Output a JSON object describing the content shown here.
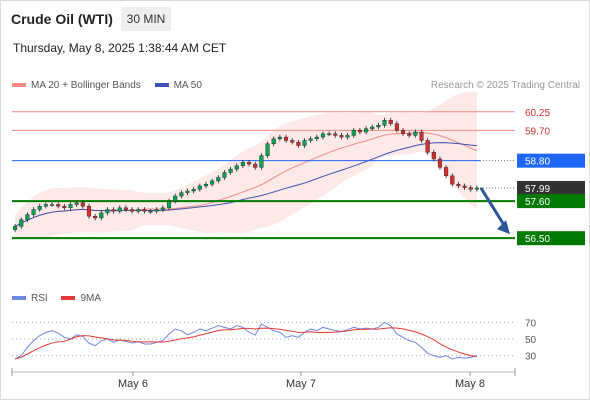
{
  "header": {
    "instrument": "Crude Oil (WTI)",
    "timeframe": "30 MIN",
    "datetime": "Thursday, May 8, 2025 1:38:44 AM CET"
  },
  "legend": {
    "bb_label": "MA 20 + Bollinger Bands",
    "ma50_label": "MA 50",
    "credit": "Research © 2025 Trading Central"
  },
  "rsi_legend": {
    "rsi_label": "RSI",
    "ma9_label": "9MA"
  },
  "colors": {
    "up": "#00a651",
    "down": "#d32f2f",
    "ma50": "#3f51b5",
    "bollinger": "#f28b82",
    "blue_level": "#1e66f5",
    "green_level": "#007a00",
    "arrow": "#2f5597",
    "rsi": "#6f87e6",
    "ma9": "#e53935"
  },
  "chart_data": {
    "type": "candlestick",
    "price_ylim": [
      55.2,
      60.6
    ],
    "levels": [
      {
        "label": "60.25",
        "value": 60.25,
        "kind": "resistance-red"
      },
      {
        "label": "59.70",
        "value": 59.7,
        "kind": "resistance-red"
      },
      {
        "label": "58.80",
        "value": 58.8,
        "kind": "pivot-blue"
      },
      {
        "label": "57.99",
        "value": 57.99,
        "kind": "last-price"
      },
      {
        "label": "57.60",
        "value": 57.6,
        "kind": "support-green"
      },
      {
        "label": "56.50",
        "value": 56.5,
        "kind": "support-green"
      }
    ],
    "x_ticks": [
      "May 6",
      "May 7",
      "May 8"
    ],
    "close": [
      56.85,
      57.05,
      57.2,
      57.35,
      57.45,
      57.5,
      57.5,
      57.45,
      57.4,
      57.5,
      57.55,
      57.45,
      57.15,
      57.1,
      57.25,
      57.35,
      57.3,
      57.4,
      57.35,
      57.3,
      57.35,
      57.3,
      57.3,
      57.35,
      57.4,
      57.6,
      57.75,
      57.85,
      57.9,
      57.95,
      58.05,
      58.1,
      58.2,
      58.3,
      58.45,
      58.55,
      58.65,
      58.75,
      58.7,
      58.6,
      58.95,
      59.3,
      59.45,
      59.5,
      59.4,
      59.35,
      59.25,
      59.4,
      59.45,
      59.5,
      59.6,
      59.6,
      59.55,
      59.5,
      59.55,
      59.7,
      59.65,
      59.75,
      59.8,
      59.85,
      60.0,
      59.9,
      59.7,
      59.6,
      59.55,
      59.65,
      59.4,
      59.05,
      58.85,
      58.6,
      58.35,
      58.1,
      58.05,
      58.0,
      57.95,
      57.99
    ],
    "ma50_ylim": [
      55.2,
      60.6
    ],
    "rsi": {
      "ylim": [
        20,
        80
      ],
      "levels": [
        {
          "label": "70",
          "value": 70
        },
        {
          "label": "50",
          "value": 50
        },
        {
          "label": "30",
          "value": 30
        }
      ],
      "values": [
        26,
        30,
        40,
        48,
        54,
        58,
        60,
        57,
        52,
        50,
        55,
        53,
        45,
        42,
        48,
        50,
        46,
        49,
        47,
        45,
        47,
        44,
        44,
        46,
        48,
        56,
        62,
        60,
        55,
        58,
        62,
        60,
        63,
        66,
        64,
        62,
        66,
        64,
        58,
        55,
        68,
        64,
        60,
        58,
        52,
        54,
        52,
        58,
        62,
        60,
        64,
        62,
        60,
        59,
        61,
        64,
        62,
        63,
        62,
        64,
        70,
        66,
        56,
        52,
        48,
        46,
        40,
        33,
        30,
        28,
        30,
        26,
        28,
        27,
        28,
        30
      ]
    }
  }
}
